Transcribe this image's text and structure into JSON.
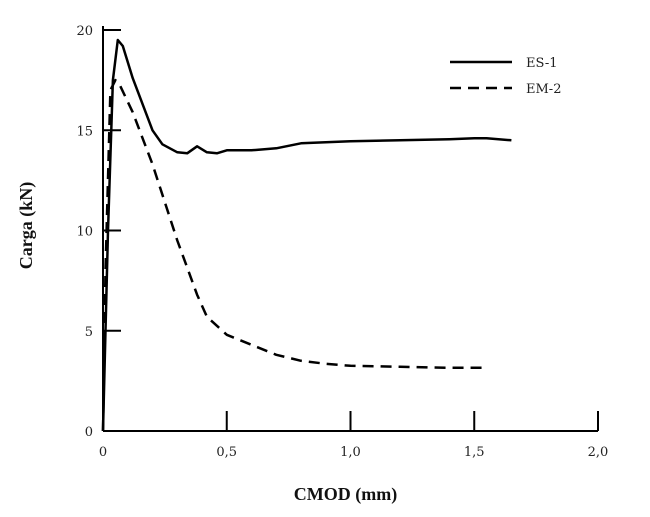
{
  "chart_data": {
    "type": "line",
    "xlabel": "CMOD (mm)",
    "ylabel": "Carga (kN)",
    "xlim": [
      0,
      2.0
    ],
    "ylim": [
      0,
      20
    ],
    "x_ticks": [
      {
        "value": 0,
        "label": "0"
      },
      {
        "value": 0.5,
        "label": "0,5"
      },
      {
        "value": 1.0,
        "label": "1,0"
      },
      {
        "value": 1.5,
        "label": "1,5"
      },
      {
        "value": 2.0,
        "label": "2,0"
      }
    ],
    "y_ticks": [
      {
        "value": 0,
        "label": "0"
      },
      {
        "value": 5,
        "label": "5"
      },
      {
        "value": 10,
        "label": "10"
      },
      {
        "value": 15,
        "label": "15"
      },
      {
        "value": 20,
        "label": "20"
      }
    ],
    "grid": false,
    "legend_position": "top-right",
    "series": [
      {
        "name": "ES-1",
        "style": "solid",
        "color": "#000000",
        "points": [
          [
            0,
            0
          ],
          [
            0.02,
            10
          ],
          [
            0.04,
            17.5
          ],
          [
            0.06,
            19.5
          ],
          [
            0.08,
            19.2
          ],
          [
            0.12,
            17.6
          ],
          [
            0.2,
            15
          ],
          [
            0.24,
            14.3
          ],
          [
            0.3,
            13.9
          ],
          [
            0.34,
            13.85
          ],
          [
            0.38,
            14.2
          ],
          [
            0.42,
            13.9
          ],
          [
            0.46,
            13.85
          ],
          [
            0.5,
            14.0
          ],
          [
            0.6,
            14.0
          ],
          [
            0.7,
            14.1
          ],
          [
            0.8,
            14.35
          ],
          [
            1.0,
            14.45
          ],
          [
            1.2,
            14.5
          ],
          [
            1.4,
            14.55
          ],
          [
            1.5,
            14.6
          ],
          [
            1.55,
            14.6
          ],
          [
            1.65,
            14.5
          ]
        ]
      },
      {
        "name": "EM-2",
        "style": "dashed",
        "color": "#000000",
        "points": [
          [
            0,
            0
          ],
          [
            0.01,
            8
          ],
          [
            0.03,
            17
          ],
          [
            0.05,
            17.5
          ],
          [
            0.07,
            17.2
          ],
          [
            0.12,
            15.9
          ],
          [
            0.2,
            13.3
          ],
          [
            0.3,
            9.5
          ],
          [
            0.38,
            6.8
          ],
          [
            0.42,
            5.7
          ],
          [
            0.5,
            4.8
          ],
          [
            0.6,
            4.3
          ],
          [
            0.7,
            3.8
          ],
          [
            0.8,
            3.5
          ],
          [
            0.9,
            3.35
          ],
          [
            1.0,
            3.25
          ],
          [
            1.2,
            3.2
          ],
          [
            1.4,
            3.15
          ],
          [
            1.55,
            3.15
          ]
        ]
      }
    ]
  }
}
